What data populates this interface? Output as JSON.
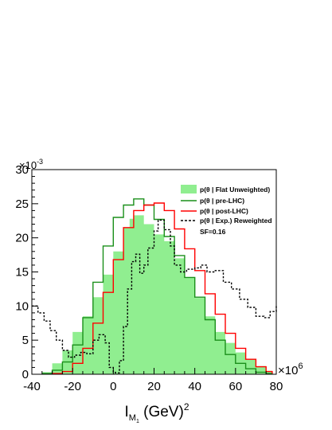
{
  "chart_data": {
    "type": "line",
    "xlim": [
      -40,
      80
    ],
    "ylim": [
      0,
      30
    ],
    "x_ticks": [
      "-40",
      "-20",
      "0",
      "20",
      "40",
      "60",
      "80"
    ],
    "y_ticks": [
      "0",
      "5",
      "10",
      "15",
      "20",
      "25",
      "30"
    ],
    "x_multiplier": "×10",
    "x_multiplier_exp": "6",
    "y_multiplier": "×10",
    "y_multiplier_exp": "-3",
    "xlabel_main": "I",
    "xlabel_sub": "M",
    "xlabel_subsub": "1",
    "xlabel_rest": " (GeV)",
    "xlabel_sup": "2",
    "grid": false,
    "legend_position": "top-right",
    "annotation": "SF=0.16",
    "series": [
      {
        "name": "p(θ | Flat Unweighted)",
        "style": "filled",
        "color": "#90ee90",
        "x": [
          -35,
          -30,
          -25,
          -20,
          -15,
          -10,
          -5,
          0,
          5,
          8,
          10,
          15,
          20,
          25,
          30,
          35,
          40,
          45,
          50,
          55,
          60,
          65,
          70,
          75,
          78
        ],
        "y": [
          0.3,
          1.6,
          3.5,
          6.2,
          8.5,
          11.3,
          14.6,
          18.0,
          21.5,
          22.8,
          23.3,
          22.0,
          20.5,
          19.5,
          17.0,
          14.2,
          11.2,
          8.5,
          6.2,
          4.6,
          3.2,
          2.2,
          1.2,
          0.5,
          0.1
        ]
      },
      {
        "name": "p(θ | pre-LHC)",
        "style": "line",
        "color": "#1a8f1a",
        "x": [
          -35,
          -30,
          -25,
          -20,
          -15,
          -10,
          -5,
          0,
          5,
          10,
          15,
          20,
          25,
          30,
          35,
          40,
          45,
          50,
          55,
          60,
          65,
          70,
          75,
          78
        ],
        "y": [
          0.1,
          0.6,
          1.8,
          4.3,
          8.3,
          13.5,
          18.8,
          23.0,
          24.8,
          25.7,
          24.8,
          22.7,
          20.2,
          17.4,
          14.2,
          11.3,
          8.0,
          5.0,
          2.9,
          1.6,
          0.8,
          0.3,
          0.1,
          0.0
        ]
      },
      {
        "name": "p(θ | post-LHC)",
        "style": "line",
        "color": "#ff0000",
        "x": [
          -30,
          -25,
          -20,
          -15,
          -10,
          -5,
          0,
          5,
          10,
          15,
          20,
          25,
          30,
          35,
          40,
          45,
          50,
          55,
          60,
          65,
          70,
          75,
          78
        ],
        "y": [
          0.1,
          0.4,
          1.6,
          3.8,
          7.5,
          12.0,
          16.8,
          21.5,
          24.0,
          24.8,
          25.1,
          24.0,
          21.3,
          18.4,
          15.2,
          11.8,
          8.8,
          6.0,
          3.8,
          2.2,
          1.1,
          0.4,
          0.1
        ]
      },
      {
        "name": "p(θ | Exp.) Reweighted",
        "style": "dashed",
        "color": "#000000",
        "x": [
          -40,
          -37,
          -34,
          -31,
          -28,
          -25,
          -22,
          -19,
          -16,
          -13,
          -10,
          -7,
          -4,
          -2,
          0,
          1,
          3,
          5,
          7,
          9,
          11,
          13,
          15,
          17,
          20,
          22,
          25,
          28,
          30,
          33,
          36,
          40,
          43,
          46,
          50,
          54,
          58,
          62,
          66,
          70,
          74,
          77,
          80
        ],
        "y": [
          10.0,
          9.0,
          7.8,
          6.4,
          5.0,
          3.5,
          2.5,
          2.8,
          3.2,
          3.0,
          5.0,
          5.8,
          4.6,
          1.0,
          0.3,
          0.2,
          2.0,
          7.0,
          12.5,
          16.5,
          17.6,
          14.8,
          16.0,
          18.5,
          21.0,
          22.6,
          21.2,
          18.8,
          16.0,
          15.0,
          15.4,
          15.6,
          16.0,
          15.0,
          15.2,
          13.5,
          12.5,
          11.0,
          9.8,
          8.5,
          8.3,
          9.2,
          10.0
        ]
      }
    ]
  }
}
